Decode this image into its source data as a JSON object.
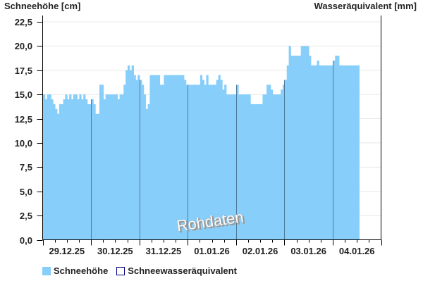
{
  "chart_data": {
    "type": "bar",
    "left_axis_title": "Schneehöhe [cm]",
    "right_axis_title": "Wasseräquivalent [mm]",
    "ylim": [
      0,
      23.15
    ],
    "y_ticks": [
      "0,0",
      "2,5",
      "5,0",
      "7,5",
      "10,0",
      "12,5",
      "15,0",
      "17,5",
      "20,0",
      "22,5"
    ],
    "y_tick_values": [
      0,
      2.5,
      5,
      7.5,
      10,
      12.5,
      15,
      17.5,
      20,
      22.5
    ],
    "grid": true,
    "x_range": [
      "29.12.25 00:00",
      "05.01.26 00:00"
    ],
    "x_interval": "1 hour",
    "x_tick_labels": [
      "29.12.25",
      "30.12.25",
      "31.12.25",
      "01.01.26",
      "02.01.26",
      "03.01.26",
      "04.01.26"
    ],
    "watermark": "Rohdaten",
    "legend_position": "bottom-left",
    "series": [
      {
        "name": "Schneehöhe",
        "color": "#87cefa",
        "hourly_by_day": [
          [
            15,
            14.5,
            15,
            15,
            14.5,
            14,
            13.5,
            13,
            14,
            14,
            14.5,
            15,
            14.5,
            15,
            14.5,
            15,
            15,
            14.5,
            15,
            14.5,
            15,
            14.5,
            14,
            14
          ],
          [
            14.5,
            14,
            13,
            13,
            16,
            16,
            14.5,
            15,
            15,
            15,
            15,
            15,
            15,
            14.5,
            15,
            15,
            16,
            17.5,
            18,
            17.5,
            18,
            17,
            16.5,
            17
          ],
          [
            16.5,
            16,
            15,
            13.5,
            14,
            17,
            17,
            17,
            17,
            17,
            16,
            16,
            17,
            17,
            17,
            17,
            17,
            17,
            17,
            17,
            17,
            17,
            16.5,
            16
          ],
          [
            16,
            16,
            16,
            16,
            16,
            16,
            17,
            16.5,
            16,
            17,
            16,
            16,
            16,
            16,
            16.5,
            17,
            16.5,
            15.5,
            16,
            15,
            15,
            15,
            15,
            15
          ],
          [
            16,
            15,
            15,
            15,
            15,
            15,
            15,
            14,
            14,
            14,
            14,
            14,
            14,
            15,
            15,
            16,
            16,
            15.5,
            15,
            15,
            15,
            15,
            15.5,
            16
          ],
          [
            16.5,
            18,
            20,
            19,
            19,
            19,
            19,
            19,
            20,
            20,
            20,
            20,
            19,
            18,
            18,
            18,
            18.5,
            18,
            18,
            18,
            18,
            18,
            18,
            18
          ],
          [
            18.5,
            19,
            19,
            18,
            18,
            18,
            18,
            18,
            18,
            18,
            18,
            18,
            18
          ]
        ]
      },
      {
        "name": "Schneewasseräquivalent",
        "color": "#000080",
        "hourly_by_day": []
      }
    ]
  }
}
